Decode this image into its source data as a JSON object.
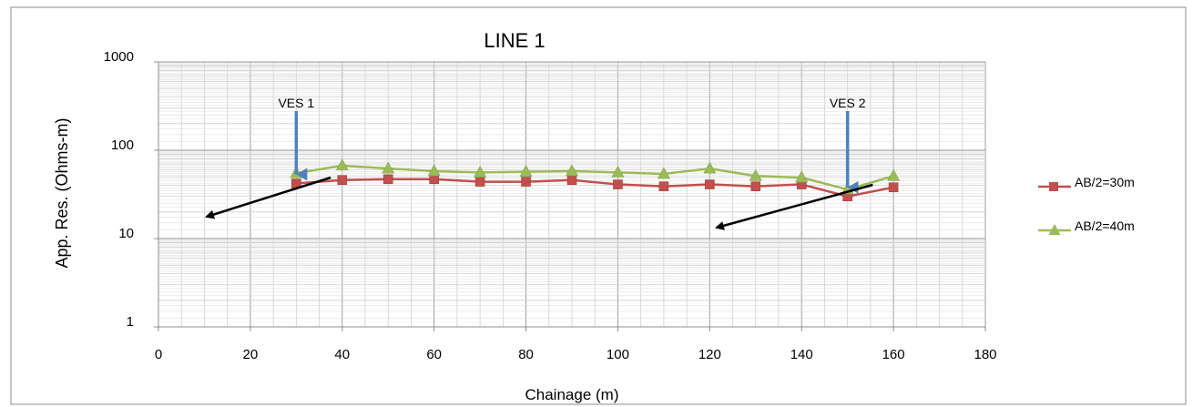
{
  "chart_data": {
    "type": "line",
    "title": "LINE 1",
    "xlabel": "Chainage (m)",
    "ylabel": "App. Res. (Ohms-m)",
    "x_ticks": [
      "0",
      "20",
      "40",
      "60",
      "80",
      "100",
      "120",
      "140",
      "160",
      "180"
    ],
    "y_ticks": [
      "1",
      "10",
      "100",
      "1000"
    ],
    "xlim": [
      0,
      180
    ],
    "ylim": [
      1,
      1000
    ],
    "y_scale": "log",
    "grid": true,
    "legend_position": "right",
    "series": [
      {
        "name": "AB/2=30m",
        "marker": "square",
        "color": "#C0504D",
        "x": [
          30,
          40,
          50,
          60,
          70,
          80,
          90,
          100,
          110,
          120,
          130,
          140,
          150,
          160
        ],
        "y": [
          42,
          46,
          47,
          47,
          44,
          44,
          46,
          41,
          39,
          41,
          39,
          41,
          30,
          38
        ]
      },
      {
        "name": "AB/2=40m",
        "marker": "triangle",
        "color": "#9BBB59",
        "x": [
          30,
          40,
          50,
          60,
          70,
          80,
          90,
          100,
          110,
          120,
          130,
          140,
          150,
          160
        ],
        "y": [
          55,
          67,
          62,
          58,
          56,
          57,
          58,
          56,
          54,
          62,
          51,
          49,
          36,
          51
        ]
      }
    ],
    "annotations": [
      {
        "label": "VES 1",
        "x": 30,
        "arrow_color": "#4F81BD"
      },
      {
        "label": "VES 2",
        "x": 150,
        "arrow_color": "#4F81BD"
      }
    ]
  }
}
